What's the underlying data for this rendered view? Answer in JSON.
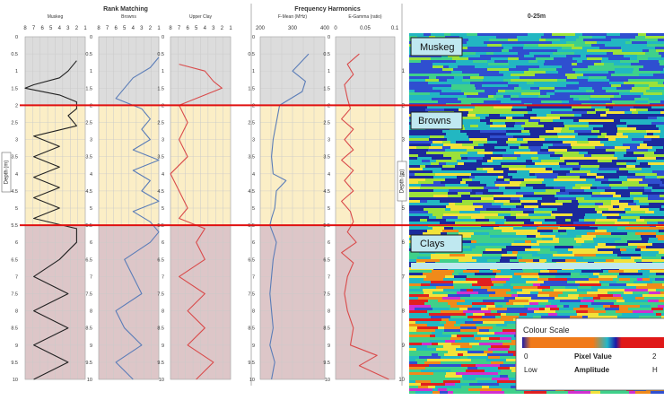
{
  "colors": {
    "muskeg_band": "#dcdcdc",
    "browns_band": "#fbeec6",
    "clays_band": "#ddc6c8",
    "boundary_line": "#e01010",
    "black_curve": "#222222",
    "blue_curve": "#5b7db8",
    "red_curve": "#d94b4b",
    "grid": "#c9c9c9"
  },
  "headers": {
    "rank_matching": "Rank Matching",
    "frequency_harmonics": "Frequency Harmonics",
    "radar_title": "0-25m"
  },
  "depth_axis": {
    "label": "Depth (m)",
    "ticks": [
      "0",
      "0.5",
      "1",
      "1.5",
      "2",
      "2.5",
      "3",
      "3.5",
      "4",
      "4.5",
      "5",
      "5.5",
      "6",
      "6.5",
      "7",
      "7.5",
      "8",
      "8.5",
      "9",
      "9.5",
      "10"
    ],
    "radar_ticks": [
      "1",
      "2",
      "3",
      "4",
      "5",
      "6",
      "7",
      "8",
      "9",
      "10"
    ]
  },
  "rank_tick_labels": [
    "8",
    "7",
    "6",
    "5",
    "4",
    "3",
    "2",
    "1"
  ],
  "fmean_tick_labels": [
    "200",
    "300",
    "400"
  ],
  "egamma_tick_labels": [
    "0",
    "0.05",
    "0.1"
  ],
  "layers": {
    "muskeg": "Muskeg",
    "browns": "Browns",
    "clays": "Clays"
  },
  "colour_scale": {
    "title": "Colour Scale",
    "min": "0",
    "pixel_value": "Pixel Value",
    "max": "2",
    "low": "Low",
    "amplitude": "Amplitude",
    "high": "H"
  },
  "chart_data": [
    {
      "type": "line",
      "title": "Muskeg",
      "group": "Rank Matching",
      "xlim": [
        8,
        1
      ],
      "ylim": [
        0,
        10
      ],
      "boundaries": [
        2,
        5.5
      ],
      "series": [
        {
          "depth": [
            0.7,
            1.0,
            1.2,
            1.4,
            1.5,
            1.7,
            1.9,
            2.1,
            2.3,
            2.6,
            2.9,
            3.2,
            3.5,
            3.8,
            4.1,
            4.4,
            4.7,
            5.0,
            5.3,
            5.6,
            6.0,
            6.5,
            7.0,
            7.5,
            8.0,
            8.5,
            9.0,
            9.5,
            10.0
          ],
          "value": [
            2,
            3,
            4,
            7,
            8,
            4,
            2,
            2,
            3,
            2,
            7,
            4,
            7,
            4,
            7,
            4,
            7,
            4,
            7,
            2,
            2,
            4,
            7,
            3,
            7,
            3,
            7,
            3,
            7
          ]
        }
      ]
    },
    {
      "type": "line",
      "title": "Browns",
      "group": "Rank Matching",
      "xlim": [
        8,
        1
      ],
      "ylim": [
        0,
        10
      ],
      "boundaries": [
        2,
        5.5
      ],
      "series": [
        {
          "depth": [
            0.6,
            0.9,
            1.2,
            1.5,
            1.8,
            2.1,
            2.4,
            2.7,
            3.0,
            3.3,
            3.6,
            3.9,
            4.2,
            4.5,
            4.8,
            5.1,
            5.4,
            5.7,
            6.0,
            6.5,
            7.0,
            7.5,
            8.0,
            8.5,
            9.0,
            9.5,
            10.0
          ],
          "value": [
            1,
            2,
            4,
            5,
            6,
            3,
            2,
            3,
            2,
            4,
            1,
            4,
            2,
            3,
            1,
            4,
            2,
            1,
            2,
            5,
            4,
            3,
            6,
            5,
            3,
            6,
            4
          ]
        }
      ]
    },
    {
      "type": "line",
      "title": "Upper Clay",
      "group": "Rank Matching",
      "xlim": [
        8,
        1
      ],
      "ylim": [
        0,
        10
      ],
      "boundaries": [
        2,
        5.5
      ],
      "series": [
        {
          "depth": [
            0.8,
            1.0,
            1.3,
            1.5,
            1.7,
            2.0,
            2.5,
            3.0,
            3.5,
            4.0,
            4.5,
            5.0,
            5.3,
            5.6,
            6.0,
            6.5,
            7.0,
            7.5,
            8.0,
            8.5,
            9.0,
            9.5,
            10.0
          ],
          "value": [
            7,
            4,
            3,
            2,
            4,
            7,
            6,
            7,
            6,
            8,
            7,
            6,
            7,
            4,
            5,
            4,
            7,
            4,
            6,
            4,
            6,
            3,
            5
          ]
        }
      ]
    },
    {
      "type": "line",
      "title": "F-Mean (MHz)",
      "group": "Frequency Harmonics",
      "xlim": [
        200,
        400
      ],
      "ylim": [
        0,
        10
      ],
      "boundaries": [
        2,
        5.5
      ],
      "series": [
        {
          "depth": [
            0.5,
            0.8,
            1.0,
            1.3,
            1.6,
            2.0,
            2.5,
            3.0,
            3.5,
            4.0,
            4.2,
            4.5,
            5.0,
            5.3,
            5.5,
            6.0,
            6.5,
            7.0,
            7.5,
            8.0,
            8.5,
            9.0,
            9.5,
            10.0
          ],
          "value": [
            350,
            320,
            300,
            340,
            330,
            260,
            250,
            240,
            235,
            240,
            280,
            250,
            245,
            235,
            230,
            250,
            240,
            235,
            230,
            235,
            240,
            230,
            245,
            235
          ]
        }
      ]
    },
    {
      "type": "line",
      "title": "E-Gamma (ratio)",
      "group": "Frequency Harmonics",
      "xlim": [
        0,
        0.1
      ],
      "ylim": [
        0,
        10
      ],
      "boundaries": [
        2,
        5.5
      ],
      "series": [
        {
          "depth": [
            0.5,
            0.8,
            1.1,
            1.4,
            1.8,
            2.1,
            2.4,
            2.7,
            3.0,
            3.3,
            3.6,
            3.9,
            4.2,
            4.5,
            4.8,
            5.1,
            5.4,
            5.7,
            6.0,
            6.3,
            6.6,
            7.0,
            7.5,
            8.0,
            8.5,
            9.0,
            9.3,
            9.6,
            10.0
          ],
          "value": [
            0.04,
            0.02,
            0.03,
            0.015,
            0.02,
            0.025,
            0.01,
            0.03,
            0.015,
            0.03,
            0.01,
            0.03,
            0.015,
            0.03,
            0.01,
            0.025,
            0.03,
            0.02,
            0.035,
            0.01,
            0.03,
            0.02,
            0.015,
            0.02,
            0.03,
            0.025,
            0.07,
            0.04,
            0.09
          ]
        }
      ]
    }
  ]
}
